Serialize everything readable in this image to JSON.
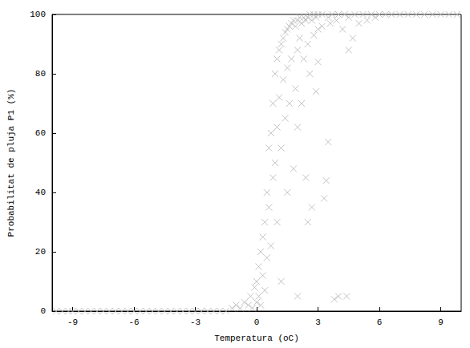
{
  "chart_data": {
    "type": "scatter",
    "x_label": "Temperatura (oC)",
    "y_label": "Probabilitat de pluja P1 (%)",
    "marker": "x",
    "color": "#b4b4b4",
    "grid": false,
    "xlim": [
      -10,
      10
    ],
    "xticks": [
      -9,
      -6,
      -3,
      0,
      3,
      6,
      9
    ],
    "ylim": [
      0,
      100
    ],
    "yticks": [
      0,
      20,
      40,
      60,
      80,
      100
    ],
    "x": [
      -9.8,
      -9.5,
      -9.2,
      -9,
      -8.7,
      -8.4,
      -8.1,
      -7.8,
      -7.5,
      -7.2,
      -6.9,
      -6.6,
      -6.3,
      -6,
      -5.7,
      -5.4,
      -5.1,
      -4.8,
      -4.5,
      -4.2,
      -3.9,
      -3.6,
      -3.3,
      -3,
      -2.7,
      -2.4,
      -2.1,
      -1.8,
      -1.5,
      -1.2,
      -1,
      -0.8,
      -0.6,
      -0.4,
      -0.3,
      -0.2,
      -0.1,
      0,
      0,
      0.1,
      0.1,
      0.2,
      0.2,
      0.3,
      0.3,
      0.4,
      0.4,
      0.5,
      0.5,
      0.6,
      0.6,
      0.7,
      0.7,
      0.8,
      0.8,
      0.9,
      0.9,
      1,
      1,
      1,
      1.1,
      1.1,
      1.2,
      1.2,
      1.2,
      1.3,
      1.3,
      1.4,
      1.4,
      1.5,
      1.5,
      1.5,
      1.6,
      1.6,
      1.7,
      1.7,
      1.8,
      1.8,
      1.9,
      1.9,
      2,
      2,
      2,
      2,
      2.1,
      2.1,
      2.2,
      2.2,
      2.3,
      2.3,
      2.4,
      2.4,
      2.5,
      2.5,
      2.5,
      2.6,
      2.6,
      2.7,
      2.7,
      2.8,
      2.8,
      2.9,
      2.9,
      3,
      3,
      3,
      3.2,
      3.2,
      3.3,
      3.4,
      3.5,
      3.5,
      3.6,
      3.7,
      3.8,
      3.9,
      4,
      4,
      4.2,
      4.3,
      4.4,
      4.5,
      4.5,
      4.7,
      4.8,
      5,
      5.2,
      5.4,
      5.6,
      5.8,
      6,
      6.3,
      6.6,
      7,
      7.4,
      7.8,
      8.2,
      8.6,
      9,
      9.4,
      9.8
    ],
    "values": [
      0,
      0,
      0,
      0,
      0,
      0,
      0,
      0,
      0,
      0,
      0,
      0,
      0,
      0,
      0,
      0,
      0,
      0,
      0,
      0,
      0,
      0,
      0,
      0,
      0,
      0,
      0,
      0,
      0,
      1,
      2,
      1,
      3,
      2,
      5,
      1,
      8,
      3,
      10,
      5,
      15,
      2,
      20,
      12,
      25,
      30,
      7,
      40,
      18,
      55,
      35,
      60,
      22,
      70,
      45,
      80,
      50,
      85,
      62,
      30,
      88,
      72,
      90,
      55,
      10,
      92,
      78,
      94,
      65,
      95,
      82,
      40,
      96,
      70,
      97,
      85,
      98,
      48,
      96,
      75,
      98,
      88,
      62,
      5,
      99,
      92,
      97,
      70,
      99,
      85,
      98,
      45,
      99,
      90,
      30,
      100,
      80,
      98,
      35,
      100,
      93,
      99,
      74,
      100,
      95,
      84,
      100,
      96,
      38,
      44,
      57,
      99,
      97,
      100,
      4,
      98,
      5,
      100,
      95,
      100,
      5,
      88,
      99,
      92,
      100,
      97,
      100,
      98,
      100,
      99,
      100,
      100,
      100,
      100,
      100,
      100,
      100,
      100,
      100,
      100,
      100
    ]
  }
}
